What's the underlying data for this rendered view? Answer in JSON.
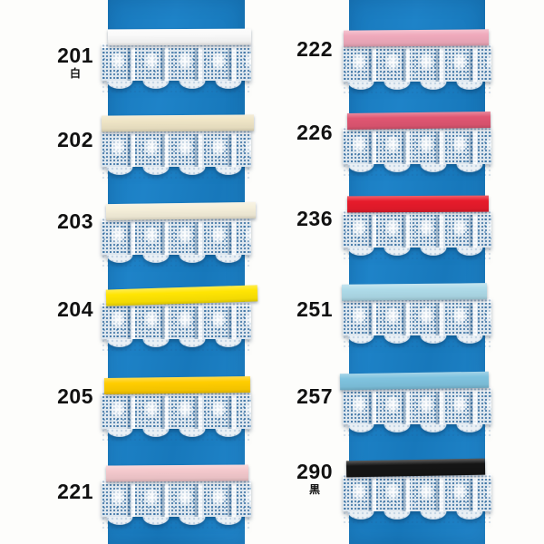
{
  "board": {
    "strip_color": "#1d80c4",
    "lace_color": "#ffffff",
    "page_background": "#fdfdfb"
  },
  "columns": [
    {
      "side": "left",
      "items": [
        {
          "code": "201",
          "note": "白",
          "ribbon_name": "white",
          "ribbon_color": "#fafafa"
        },
        {
          "code": "202",
          "note": "",
          "ribbon_name": "cream",
          "ribbon_color": "#efe5c6"
        },
        {
          "code": "203",
          "note": "",
          "ribbon_name": "ivory",
          "ribbon_color": "#f5efda"
        },
        {
          "code": "204",
          "note": "",
          "ribbon_name": "yellow",
          "ribbon_color": "#ffe503"
        },
        {
          "code": "205",
          "note": "",
          "ribbon_name": "golden-yellow",
          "ribbon_color": "#ffcd00"
        },
        {
          "code": "221",
          "note": "",
          "ribbon_name": "pale-pink",
          "ribbon_color": "#f4c9cd"
        }
      ]
    },
    {
      "side": "right",
      "items": [
        {
          "code": "222",
          "note": "",
          "ribbon_name": "pink",
          "ribbon_color": "#f0aabc"
        },
        {
          "code": "226",
          "note": "",
          "ribbon_name": "rose",
          "ribbon_color": "#e05672"
        },
        {
          "code": "236",
          "note": "",
          "ribbon_name": "red",
          "ribbon_color": "#e71b2b"
        },
        {
          "code": "251",
          "note": "",
          "ribbon_name": "pale-aqua",
          "ribbon_color": "#aedbe9"
        },
        {
          "code": "257",
          "note": "",
          "ribbon_name": "sky-blue",
          "ribbon_color": "#7fc3df"
        },
        {
          "code": "290",
          "note": "黒",
          "ribbon_name": "black",
          "ribbon_color": "#151515"
        }
      ]
    }
  ]
}
